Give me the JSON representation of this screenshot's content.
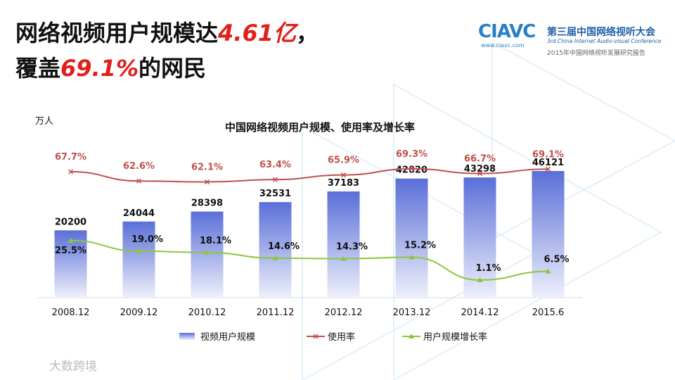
{
  "header": {
    "title_line1": [
      "网络视频用户规模达",
      "4.61亿",
      "，"
    ],
    "title_line2": [
      "覆盖",
      "69.1%",
      "的网民"
    ],
    "logo": {
      "brand": "CIAVC",
      "url": "www.ciavc.com",
      "name_cn": "第三届中国网络视听大会",
      "name_en": "3rd China Internet Audio-visual Conference",
      "report": "2015年中国网络视听发展研究报告"
    },
    "watermark": "大数跨境"
  },
  "chart_data": {
    "type": "bar",
    "title": "中国网络视频用户规模、使用率及增长率",
    "unit_label": "万人",
    "categories": [
      "2008.12",
      "2009.12",
      "2010.12",
      "2011.12",
      "2012.12",
      "2013.12",
      "2014.12",
      "2015.6"
    ],
    "series": [
      {
        "name": "视频用户规模",
        "type": "bar",
        "color": "#5a6fd8",
        "values": [
          20200,
          24044,
          28398,
          32531,
          37183,
          42820,
          43298,
          46121
        ]
      },
      {
        "name": "使用率",
        "type": "line",
        "marker": "x",
        "color": "#c0504d",
        "values": [
          67.7,
          62.6,
          62.1,
          63.4,
          65.9,
          69.3,
          66.7,
          69.1
        ],
        "value_labels": [
          "67.7%",
          "62.6%",
          "62.1%",
          "63.4%",
          "65.9%",
          "69.3%",
          "66.7%",
          "69.1%"
        ]
      },
      {
        "name": "用户规模增长率",
        "type": "line",
        "marker": "triangle",
        "color": "#8dc63f",
        "values": [
          25.5,
          19.0,
          18.1,
          14.6,
          14.3,
          15.2,
          1.1,
          6.5
        ],
        "value_labels": [
          "25.5%",
          "19.0%",
          "18.1%",
          "14.6%",
          "14.3%",
          "15.2%",
          "1.1%",
          "6.5%"
        ]
      }
    ]
  }
}
